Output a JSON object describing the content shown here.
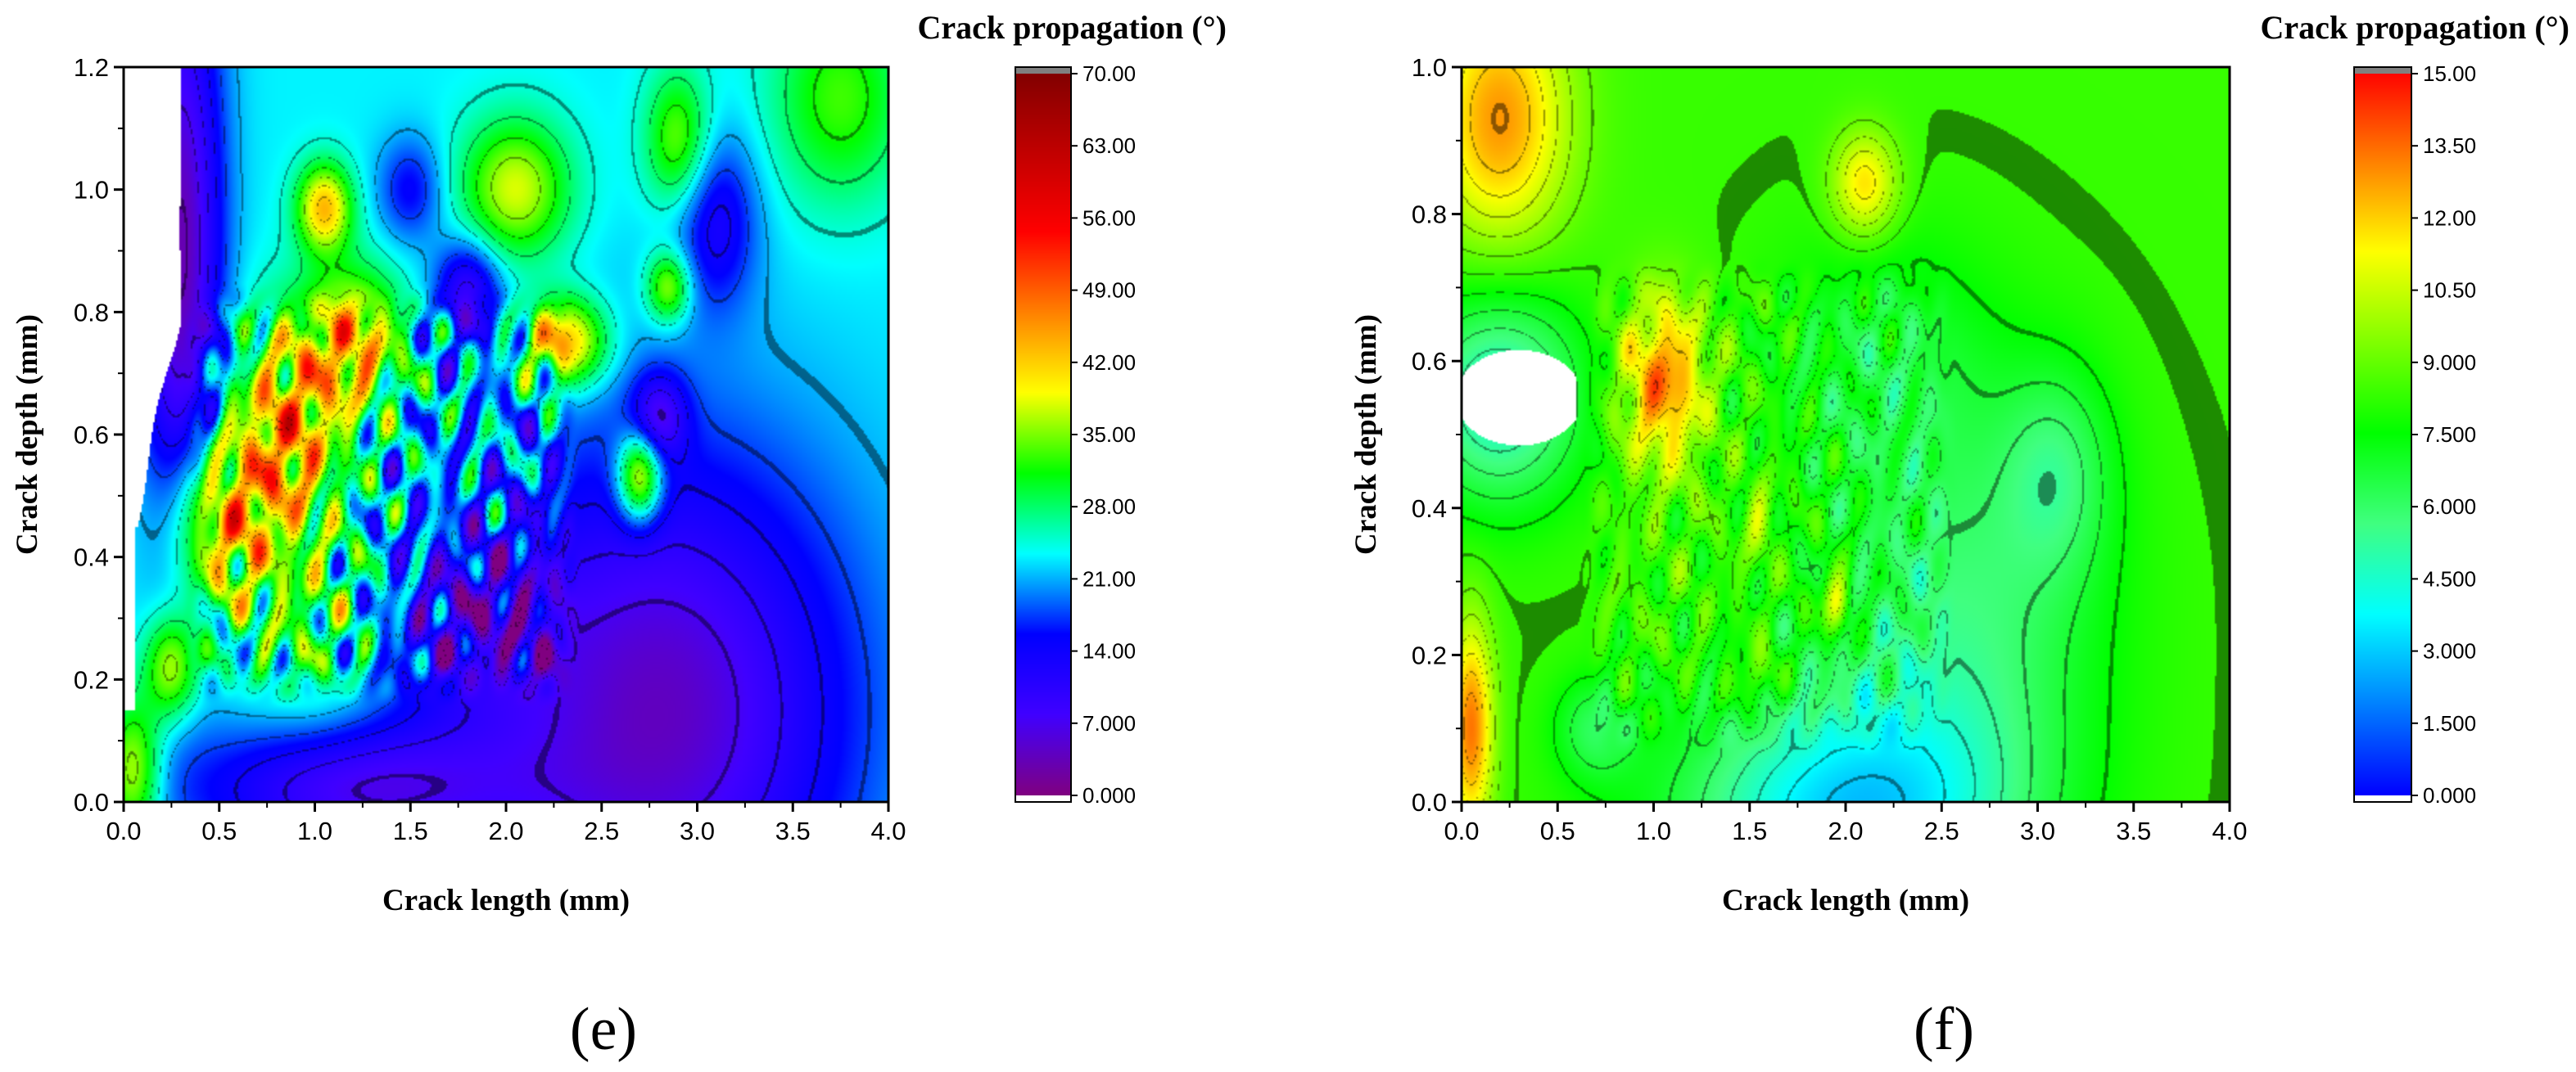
{
  "chart_data": [
    {
      "type": "heatmap",
      "panel_label": "(e)",
      "xlabel": "Crack length (mm)",
      "ylabel": "Crack depth (mm)",
      "colorbar_title": "Crack propagation (°)",
      "xlim": [
        0.0,
        4.0
      ],
      "ylim": [
        0.0,
        1.2
      ],
      "x_ticks": [
        0.0,
        0.5,
        1.0,
        1.5,
        2.0,
        2.5,
        3.0,
        3.5,
        4.0
      ],
      "x_tick_labels": [
        "0.0",
        "0.5",
        "1.0",
        "1.5",
        "2.0",
        "2.5",
        "3.0",
        "3.5",
        "4.0"
      ],
      "y_ticks": [
        0.0,
        0.2,
        0.4,
        0.6,
        0.8,
        1.0,
        1.2
      ],
      "y_tick_labels": [
        "0.0",
        "0.2",
        "0.4",
        "0.6",
        "0.8",
        "1.0",
        "1.2"
      ],
      "colorbar_range": [
        0,
        70
      ],
      "colorbar_ticks": [
        0,
        7,
        14,
        21,
        28,
        35,
        42,
        49,
        56,
        63,
        70
      ],
      "colorbar_tick_labels": [
        "0.000",
        "7.000",
        "14.00",
        "21.00",
        "28.00",
        "35.00",
        "42.00",
        "49.00",
        "56.00",
        "63.00",
        "70.00"
      ],
      "colormap": [
        "#800080",
        "#4000ff",
        "#0000ff",
        "#00ffff",
        "#00ff00",
        "#ffff00",
        "#ff8000",
        "#ff0000",
        "#c00000",
        "#800000"
      ],
      "field": {
        "base": 23,
        "hotspots": [
          {
            "x": 0.5,
            "y": 0.45,
            "sx": 0.18,
            "sy": 0.1,
            "a": 20
          },
          {
            "x": 0.85,
            "y": 0.6,
            "sx": 0.2,
            "sy": 0.12,
            "a": 22
          },
          {
            "x": 1.2,
            "y": 0.75,
            "sx": 0.18,
            "sy": 0.08,
            "a": 20
          },
          {
            "x": 2.3,
            "y": 0.75,
            "sx": 0.15,
            "sy": 0.05,
            "a": 22
          },
          {
            "x": 2.7,
            "y": 0.53,
            "sx": 0.08,
            "sy": 0.05,
            "a": 22
          },
          {
            "x": 1.05,
            "y": 0.97,
            "sx": 0.1,
            "sy": 0.05,
            "a": 20
          },
          {
            "x": 2.05,
            "y": 1.0,
            "sx": 0.2,
            "sy": 0.08,
            "a": 15
          },
          {
            "x": 2.9,
            "y": 1.08,
            "sx": 0.12,
            "sy": 0.08,
            "a": 12
          },
          {
            "x": 3.75,
            "y": 1.15,
            "sx": 0.25,
            "sy": 0.12,
            "a": 10
          },
          {
            "x": 0.05,
            "y": 0.05,
            "sx": 0.1,
            "sy": 0.08,
            "a": 15
          },
          {
            "x": 0.25,
            "y": 0.22,
            "sx": 0.1,
            "sy": 0.06,
            "a": 15
          },
          {
            "x": 1.0,
            "y": 0.3,
            "sx": 0.25,
            "sy": 0.12,
            "a": 8
          },
          {
            "x": 2.85,
            "y": 0.84,
            "sx": 0.08,
            "sy": 0.04,
            "a": 14
          }
        ],
        "coldspots": [
          {
            "x": 2.8,
            "y": 0.15,
            "sx": 0.7,
            "sy": 0.3,
            "a": -19
          },
          {
            "x": 1.2,
            "y": 0.02,
            "sx": 0.6,
            "sy": 0.08,
            "a": -15
          },
          {
            "x": 1.8,
            "y": 0.3,
            "sx": 0.3,
            "sy": 0.1,
            "a": -10
          },
          {
            "x": 3.1,
            "y": 0.95,
            "sx": 0.15,
            "sy": 0.1,
            "a": -10
          },
          {
            "x": 1.8,
            "y": 0.83,
            "sx": 0.12,
            "sy": 0.06,
            "a": -14
          },
          {
            "x": 2.8,
            "y": 0.63,
            "sx": 0.1,
            "sy": 0.05,
            "a": -12
          },
          {
            "x": 1.5,
            "y": 1.0,
            "sx": 0.12,
            "sy": 0.06,
            "a": -8
          },
          {
            "x": 0.3,
            "y": 0.9,
            "sx": 0.15,
            "sy": 0.35,
            "a": -20
          }
        ],
        "ripple_amp": 14,
        "ripple_region": {
          "x0": 0.3,
          "x1": 2.4,
          "y0": 0.15,
          "y1": 0.85
        }
      }
    },
    {
      "type": "heatmap",
      "panel_label": "(f)",
      "xlabel": "Crack length (mm)",
      "ylabel": "Crack depth (mm)",
      "colorbar_title": "Crack propagation (°)",
      "xlim": [
        0.0,
        4.0
      ],
      "ylim": [
        0.0,
        1.0
      ],
      "x_ticks": [
        0.0,
        0.5,
        1.0,
        1.5,
        2.0,
        2.5,
        3.0,
        3.5,
        4.0
      ],
      "x_tick_labels": [
        "0.0",
        "0.5",
        "1.0",
        "1.5",
        "2.0",
        "2.5",
        "3.0",
        "3.5",
        "4.0"
      ],
      "y_ticks": [
        0.0,
        0.2,
        0.4,
        0.6,
        0.8,
        1.0
      ],
      "y_tick_labels": [
        "0.0",
        "0.2",
        "0.4",
        "0.6",
        "0.8",
        "1.0"
      ],
      "colorbar_range": [
        0,
        15
      ],
      "colorbar_ticks": [
        0,
        1.5,
        3,
        4.5,
        6,
        7.5,
        9,
        10.5,
        12,
        13.5,
        15
      ],
      "colorbar_tick_labels": [
        "0.000",
        "1.500",
        "3.000",
        "4.500",
        "6.000",
        "7.500",
        "9.000",
        "10.50",
        "12.00",
        "13.50",
        "15.00"
      ],
      "colormap": [
        "#0000ff",
        "#0080ff",
        "#00ffff",
        "#40ff80",
        "#00ff00",
        "#80ff00",
        "#ffff00",
        "#ff8000",
        "#ff0000"
      ],
      "field": {
        "base": 8.3,
        "hotspots": [
          {
            "x": 0.2,
            "y": 0.93,
            "sx": 0.25,
            "sy": 0.12,
            "a": 4.5
          },
          {
            "x": 1.05,
            "y": 0.57,
            "sx": 0.15,
            "sy": 0.08,
            "a": 5
          },
          {
            "x": 0.05,
            "y": 0.1,
            "sx": 0.08,
            "sy": 0.1,
            "a": 5
          },
          {
            "x": 2.1,
            "y": 0.84,
            "sx": 0.12,
            "sy": 0.05,
            "a": 3.5
          },
          {
            "x": 1.95,
            "y": 0.27,
            "sx": 0.05,
            "sy": 0.03,
            "a": 4
          },
          {
            "x": 1.55,
            "y": 0.38,
            "sx": 0.05,
            "sy": 0.04,
            "a": 2
          },
          {
            "x": 1.55,
            "y": 0.17,
            "sx": 0.08,
            "sy": 0.03,
            "a": 2
          }
        ],
        "coldspots": [
          {
            "x": 2.0,
            "y": -0.02,
            "sx": 0.6,
            "sy": 0.12,
            "a": -5
          },
          {
            "x": 2.6,
            "y": 0.25,
            "sx": 0.5,
            "sy": 0.2,
            "a": -2.5
          },
          {
            "x": 3.1,
            "y": 0.45,
            "sx": 0.2,
            "sy": 0.1,
            "a": -2
          },
          {
            "x": 0.7,
            "y": 0.1,
            "sx": 0.15,
            "sy": 0.05,
            "a": -2
          },
          {
            "x": 0.2,
            "y": 0.55,
            "sx": 0.3,
            "sy": 0.1,
            "a": -4
          },
          {
            "x": 2.2,
            "y": 0.6,
            "sx": 0.4,
            "sy": 0.12,
            "a": -1.5
          }
        ],
        "ripple_amp": 1.5,
        "ripple_region": {
          "x0": 0.6,
          "x1": 2.6,
          "y0": 0.05,
          "y1": 0.75
        }
      }
    }
  ]
}
